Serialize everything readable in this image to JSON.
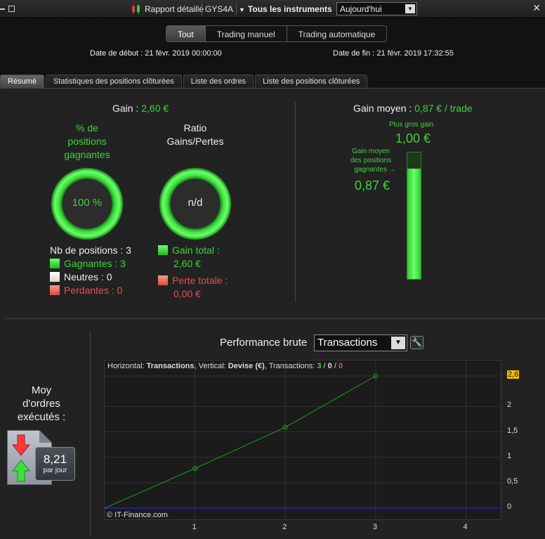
{
  "titlebar": {
    "report_label": "Rapport détaillé",
    "symbol": "GYS4A",
    "instruments": "Tous les instruments",
    "period": "Aujourd'hui"
  },
  "modes": [
    "Tout",
    "Trading manuel",
    "Trading automatique"
  ],
  "dates": {
    "start": "Date de début :  21 févr. 2019 00:00:00",
    "end": "Date de fin :  21 févr. 2019 17:32:55"
  },
  "tabs": [
    "Résumé",
    "Statistiques des positions clôturées",
    "Liste des ordres",
    "Liste des positions clôturées"
  ],
  "summary": {
    "gain_label": "Gain : ",
    "gain_value": "2,60 €",
    "win_pct_title": [
      "% de",
      "positions",
      "gagnantes"
    ],
    "win_pct_value": "100 %",
    "ratio_title": [
      "Ratio",
      "Gains/Pertes"
    ],
    "ratio_value": "n/d",
    "positions_count": "Nb de positions : 3",
    "winners": "Gagnantes : 3",
    "neutral": "Neutres : 0",
    "losers": "Perdantes : 0",
    "total_gain": [
      "Gain total :",
      "2,60 €"
    ],
    "total_loss": [
      "Perte totale :",
      "0,00 €"
    ]
  },
  "avg_gain": {
    "label": "Gain moyen : ",
    "value": "0,87 € / trade",
    "max_label": "Plus gros gain",
    "max_value": "1,00 €",
    "avg_win_label": [
      "Gain moyen",
      "des positions",
      "gagnantes"
    ],
    "avg_win_value": "0,87 €",
    "fill_fraction": 0.87
  },
  "orders": {
    "label": [
      "Moy",
      "d'ordres",
      "exécutés :"
    ],
    "value": "8,21",
    "unit": "par jour"
  },
  "performance": {
    "title": "Performance brute",
    "select": "Transactions",
    "info": {
      "h_label": "Horizontal: ",
      "h_value": "Transactions",
      "v_label": ", Vertical: ",
      "v_value": "Devise (€)",
      "t_label": ", Transactions: ",
      "wins": "3",
      "sep1": " / ",
      "neutral": "0",
      "sep2": " / ",
      "losses": "0"
    },
    "copyright": "© IT-Finance.com"
  },
  "chart_data": {
    "type": "line",
    "x": [
      0,
      1,
      2,
      3
    ],
    "series": [
      {
        "values": [
          0,
          0.78,
          1.59,
          2.6
        ]
      }
    ],
    "xticks": [
      "1",
      "2",
      "3",
      "4"
    ],
    "yticks": [
      "0",
      "0,5",
      "1",
      "1,5",
      "2",
      "2,6"
    ],
    "xlim": [
      0,
      4.4
    ],
    "ylim": [
      0,
      2.6
    ],
    "grid": true,
    "last_value_label": "2,6",
    "colors": {
      "line": "#1ea01e",
      "baseline": "#2a2aff"
    }
  },
  "colors": {
    "accent_green": "#3fd33f",
    "loss_red": "#ee4c4c"
  }
}
